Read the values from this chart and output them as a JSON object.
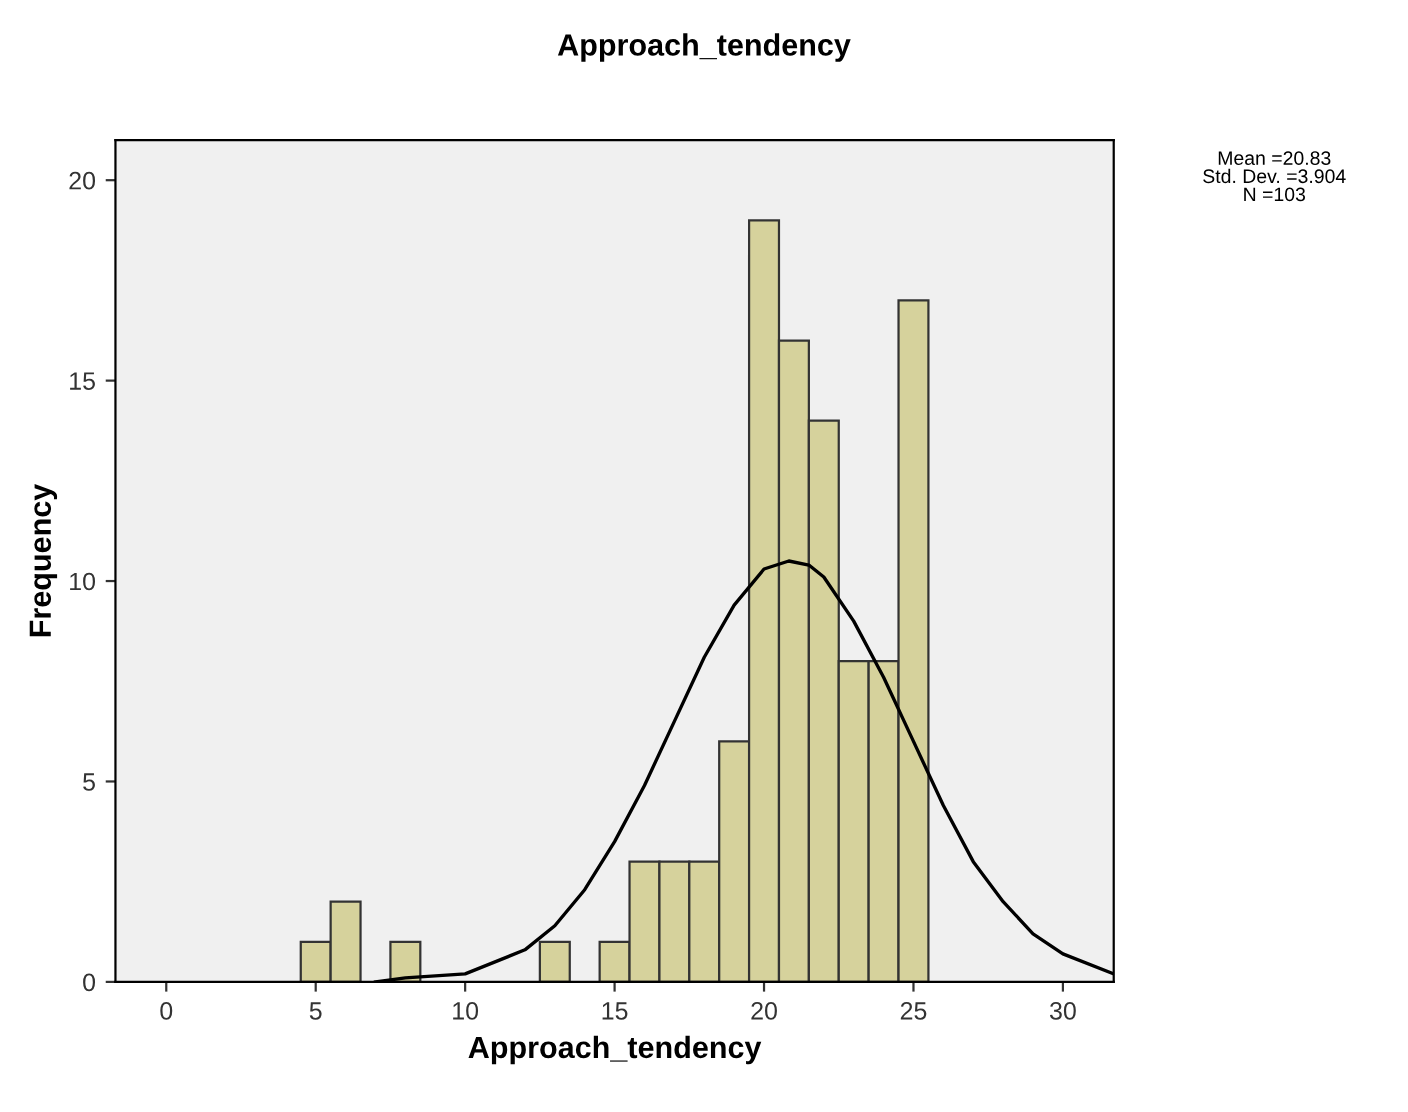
{
  "chart_data": {
    "type": "histogram",
    "title": "Approach_tendency",
    "xlabel": "Approach_tendency",
    "ylabel": "Frequency",
    "series": [
      {
        "color": "#d6d29c",
        "bins": [
          4.5,
          5.5,
          6.5,
          7.5,
          8.5,
          9.5,
          10.5,
          11.5,
          12.5,
          13.5,
          14.5,
          15.5,
          16.5,
          17.5,
          18.5,
          19.5,
          20.5,
          21.5,
          22.5,
          23.5,
          24.5,
          25.5
        ],
        "values": [
          1,
          2,
          0,
          1,
          0,
          0,
          0,
          0,
          1,
          0,
          1,
          3,
          3,
          3,
          6,
          19,
          16,
          14,
          8,
          8,
          17
        ]
      },
      {
        "type": "line",
        "color": "#000000",
        "x": [
          7,
          8,
          10,
          12,
          13,
          14,
          15,
          16,
          17,
          18,
          19,
          20,
          20.83,
          21.5,
          22,
          23,
          24,
          25,
          26,
          27,
          28,
          29,
          30,
          31.7
        ],
        "values": [
          0.0,
          0.1,
          0.2,
          0.8,
          1.4,
          2.3,
          3.5,
          4.9,
          6.5,
          8.1,
          9.4,
          10.3,
          10.5,
          10.4,
          10.1,
          9.0,
          7.6,
          6.0,
          4.4,
          3.0,
          2.0,
          1.2,
          0.7,
          0.2
        ]
      }
    ],
    "annotations": [
      "Mean =20.83\nStd. Dev. =3.904\nN =103"
    ],
    "xlim": [
      -1.7,
      31.7
    ],
    "ylim": [
      0,
      21
    ],
    "xticks": [
      0,
      5,
      10,
      15,
      20,
      25,
      30
    ],
    "yticks": [
      0,
      5,
      10,
      15,
      20
    ],
    "grid": false,
    "legend": false
  }
}
